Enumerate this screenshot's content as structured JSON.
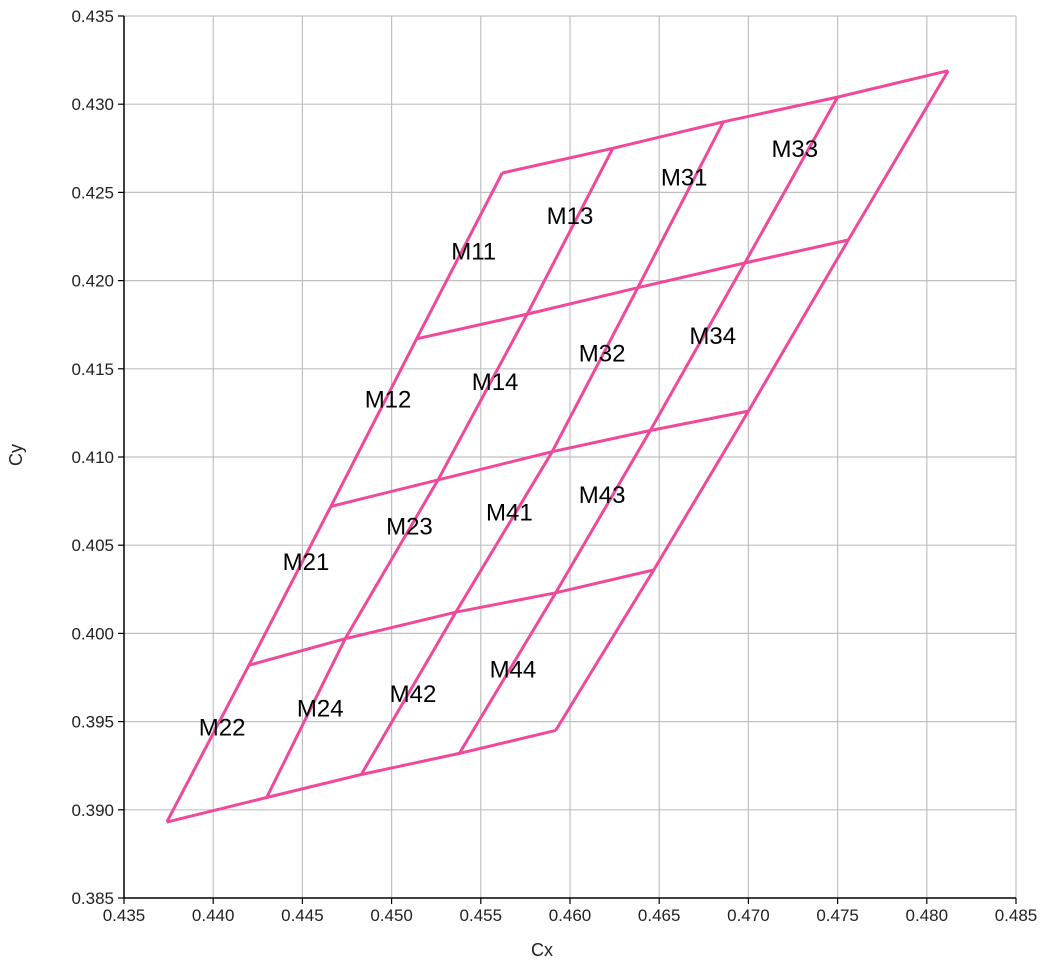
{
  "chart_data": {
    "type": "line",
    "title": "",
    "xlabel": "Cx",
    "ylabel": "Cy",
    "xlim": [
      0.435,
      0.485
    ],
    "ylim": [
      0.385,
      0.435
    ],
    "x_ticks": [
      "0.435",
      "0.440",
      "0.445",
      "0.450",
      "0.455",
      "0.460",
      "0.465",
      "0.470",
      "0.475",
      "0.480",
      "0.485"
    ],
    "y_ticks": [
      "0.435",
      "0.430",
      "0.425",
      "0.420",
      "0.415",
      "0.410",
      "0.405",
      "0.400",
      "0.395",
      "0.390",
      "0.385"
    ],
    "x_tick_values": [
      0.435,
      0.44,
      0.445,
      0.45,
      0.455,
      0.46,
      0.465,
      0.47,
      0.475,
      0.48,
      0.485
    ],
    "y_tick_values": [
      0.435,
      0.43,
      0.425,
      0.42,
      0.415,
      0.41,
      0.405,
      0.4,
      0.395,
      0.39,
      0.385
    ],
    "grid": true,
    "line_color": "#f0489a",
    "grid_color": "#c0c0c0",
    "grid_lines": [
      {
        "x": [
          0.4562,
          0.4624,
          0.4686,
          0.475,
          0.4812
        ],
        "y": [
          0.4261,
          0.4275,
          0.429,
          0.4304,
          0.4319
        ]
      },
      {
        "x": [
          0.4514,
          0.4576,
          0.4638,
          0.4698,
          0.4756
        ],
        "y": [
          0.4167,
          0.4181,
          0.4196,
          0.421,
          0.4223
        ]
      },
      {
        "x": [
          0.4466,
          0.4526,
          0.459,
          0.4645,
          0.47
        ],
        "y": [
          0.4072,
          0.4087,
          0.4103,
          0.4115,
          0.4126
        ]
      },
      {
        "x": [
          0.442,
          0.4474,
          0.4536,
          0.4592,
          0.4647
        ],
        "y": [
          0.3982,
          0.3997,
          0.4012,
          0.4023,
          0.4036
        ]
      },
      {
        "x": [
          0.4374,
          0.443,
          0.4483,
          0.4538,
          0.4592
        ],
        "y": [
          0.3893,
          0.3907,
          0.392,
          0.3932,
          0.3945
        ]
      },
      {
        "x": [
          0.4562,
          0.4514,
          0.4466,
          0.442,
          0.4374
        ],
        "y": [
          0.4261,
          0.4167,
          0.4072,
          0.3982,
          0.3893
        ]
      },
      {
        "x": [
          0.4624,
          0.4576,
          0.4526,
          0.4474,
          0.443
        ],
        "y": [
          0.4275,
          0.4181,
          0.4087,
          0.3997,
          0.3907
        ]
      },
      {
        "x": [
          0.4686,
          0.4638,
          0.459,
          0.4536,
          0.4483
        ],
        "y": [
          0.429,
          0.4196,
          0.4103,
          0.4012,
          0.392
        ]
      },
      {
        "x": [
          0.475,
          0.4698,
          0.4645,
          0.4592,
          0.4538
        ],
        "y": [
          0.4304,
          0.421,
          0.4115,
          0.4023,
          0.3932
        ]
      },
      {
        "x": [
          0.4812,
          0.4756,
          0.47,
          0.4647,
          0.4592
        ],
        "y": [
          0.4319,
          0.4223,
          0.4126,
          0.4036,
          0.3945
        ]
      }
    ],
    "annotations": [
      {
        "text": "M11",
        "x": 0.4546,
        "y": 0.4212
      },
      {
        "text": "M13",
        "x": 0.46,
        "y": 0.4232
      },
      {
        "text": "M31",
        "x": 0.4664,
        "y": 0.4254
      },
      {
        "text": "M33",
        "x": 0.4726,
        "y": 0.427
      },
      {
        "text": "M12",
        "x": 0.4498,
        "y": 0.4128
      },
      {
        "text": "M14",
        "x": 0.4558,
        "y": 0.4138
      },
      {
        "text": "M32",
        "x": 0.4618,
        "y": 0.4154
      },
      {
        "text": "M34",
        "x": 0.468,
        "y": 0.4164
      },
      {
        "text": "M21",
        "x": 0.4452,
        "y": 0.4036
      },
      {
        "text": "M23",
        "x": 0.451,
        "y": 0.4056
      },
      {
        "text": "M41",
        "x": 0.4566,
        "y": 0.4064
      },
      {
        "text": "M43",
        "x": 0.4618,
        "y": 0.4074
      },
      {
        "text": "M22",
        "x": 0.4405,
        "y": 0.3942
      },
      {
        "text": "M24",
        "x": 0.446,
        "y": 0.3953
      },
      {
        "text": "M42",
        "x": 0.4512,
        "y": 0.3961
      },
      {
        "text": "M44",
        "x": 0.4568,
        "y": 0.3975
      }
    ]
  }
}
